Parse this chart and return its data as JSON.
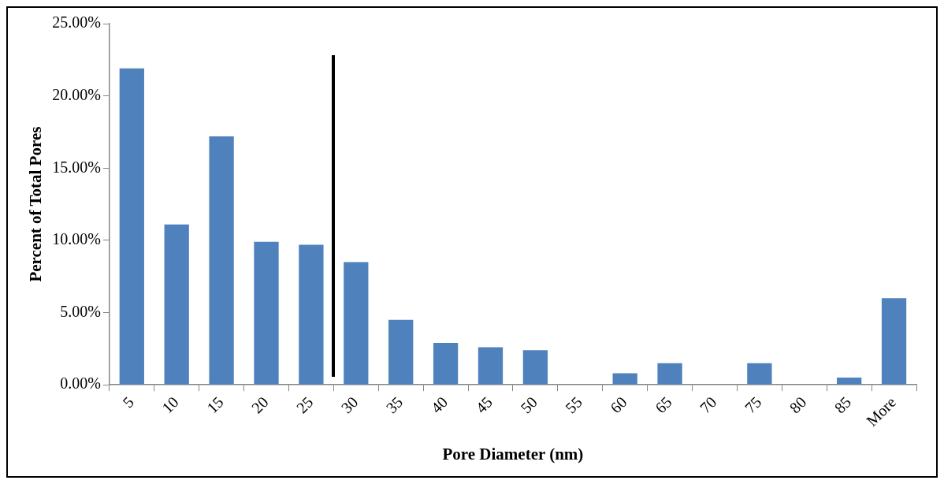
{
  "chart_data": {
    "type": "bar",
    "xlabel": "Pore Diameter (nm)",
    "ylabel": "Percent of Total Pores",
    "categories": [
      "5",
      "10",
      "15",
      "20",
      "25",
      "30",
      "35",
      "40",
      "45",
      "50",
      "55",
      "60",
      "65",
      "70",
      "75",
      "80",
      "85",
      "More"
    ],
    "values": [
      21.9,
      11.1,
      17.2,
      9.9,
      9.7,
      8.5,
      4.5,
      2.9,
      2.6,
      2.4,
      0,
      0.8,
      1.5,
      0,
      1.5,
      0,
      0.5,
      6.0
    ],
    "color": "#4f81bd",
    "ylim": [
      0,
      25
    ],
    "yticks": [
      {
        "value": 0,
        "label": "0.00%"
      },
      {
        "value": 5,
        "label": "5.00%"
      },
      {
        "value": 10,
        "label": "10.00%"
      },
      {
        "value": 15,
        "label": "15.00%"
      },
      {
        "value": 20,
        "label": "20.00%"
      },
      {
        "value": 25,
        "label": "25.00%"
      }
    ],
    "grid": false,
    "legend": false
  }
}
